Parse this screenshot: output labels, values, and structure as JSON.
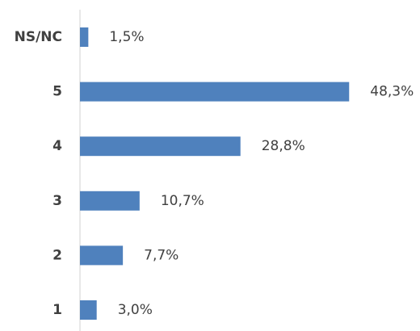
{
  "chart_data": {
    "type": "bar",
    "orientation": "horizontal",
    "categories": [
      "NS/NC",
      "5",
      "4",
      "3",
      "2",
      "1"
    ],
    "values": [
      1.5,
      48.3,
      28.8,
      10.7,
      7.7,
      3.0
    ],
    "value_labels": [
      "1,5%",
      "48,3%",
      "28,8%",
      "10,7%",
      "7,7%",
      "3,0%"
    ],
    "color": "#4f81bd"
  }
}
